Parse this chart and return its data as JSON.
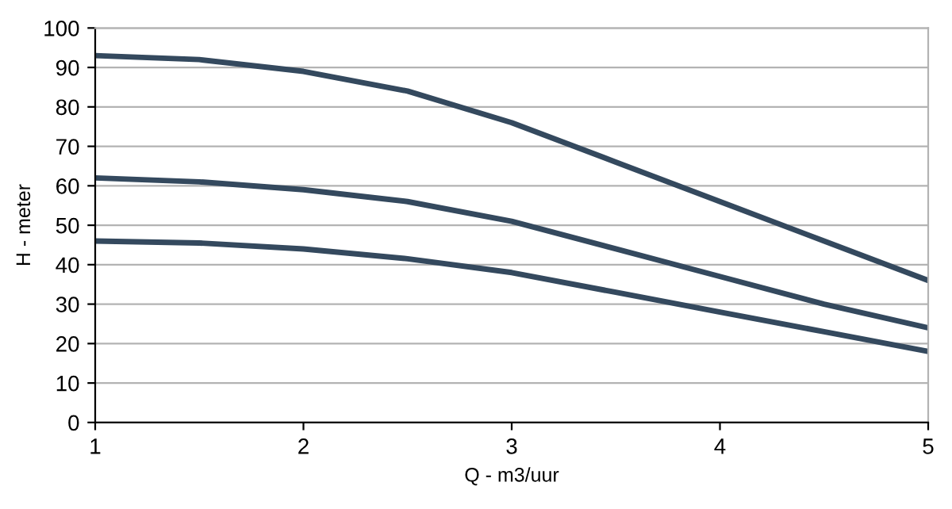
{
  "chart_data": {
    "type": "line",
    "xlabel": "Q - m3/uur",
    "ylabel": "H - meter",
    "x": [
      1,
      1.5,
      2,
      2.5,
      3,
      3.5,
      4,
      4.5,
      5
    ],
    "series": [
      {
        "color": "#34495e",
        "values": [
          93,
          92,
          89,
          84,
          76,
          66,
          56,
          46,
          36
        ]
      },
      {
        "color": "#34495e",
        "values": [
          62,
          61,
          59,
          56,
          51,
          44,
          37,
          30,
          24
        ]
      },
      {
        "color": "#34495e",
        "values": [
          46,
          45.5,
          44,
          41.5,
          38,
          33,
          28,
          23,
          18
        ]
      }
    ],
    "xlim": [
      1,
      5
    ],
    "xticks": [
      1,
      2,
      3,
      4,
      5
    ],
    "ylim": [
      0,
      100
    ],
    "yticks": [
      0,
      10,
      20,
      30,
      40,
      50,
      60,
      70,
      80,
      90,
      100
    ],
    "grid": "y",
    "legend": false,
    "marker": "none",
    "line_style": "solid"
  }
}
